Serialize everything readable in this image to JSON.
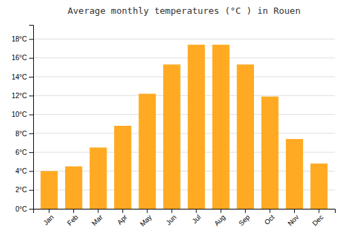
{
  "chart_data": {
    "type": "bar",
    "title": "Average monthly temperatures (°C ) in Rouen",
    "categories": [
      "Jan",
      "Feb",
      "Mar",
      "Apr",
      "May",
      "Jun",
      "Jul",
      "Aug",
      "Sep",
      "Oct",
      "Nov",
      "Dec"
    ],
    "values": [
      4.0,
      4.5,
      6.5,
      8.8,
      12.2,
      15.3,
      17.4,
      17.4,
      15.3,
      11.9,
      7.4,
      4.8
    ],
    "color": "#FFAA22",
    "ylim": [
      0,
      19.5
    ],
    "yticks": [
      {
        "value": 0,
        "label": "0°C"
      },
      {
        "value": 2,
        "label": "2°C"
      },
      {
        "value": 4,
        "label": "4°C"
      },
      {
        "value": 6,
        "label": "6°C"
      },
      {
        "value": 8,
        "label": "8°C"
      },
      {
        "value": 10,
        "label": "10°C"
      },
      {
        "value": 12,
        "label": "12°C"
      },
      {
        "value": 14,
        "label": "14°C"
      },
      {
        "value": 16,
        "label": "16°C"
      },
      {
        "value": 18,
        "label": "18°C"
      }
    ],
    "grid": true
  }
}
